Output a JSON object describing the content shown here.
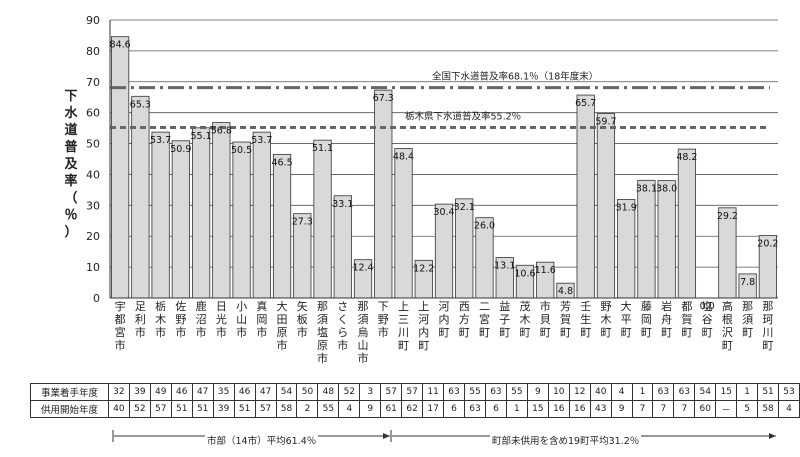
{
  "chart_data": {
    "type": "bar",
    "ylabel_chars": [
      "下",
      "水",
      "道",
      "普",
      "及",
      "率",
      "（",
      "％",
      "）"
    ],
    "ylim": [
      0,
      90
    ],
    "yticks": [
      0,
      10,
      20,
      30,
      40,
      50,
      60,
      70,
      80,
      90
    ],
    "categories": [
      {
        "name": "宇都宮市",
        "chars": [
          "宇",
          "都",
          "宮",
          "市"
        ]
      },
      {
        "name": "足利市",
        "chars": [
          "足",
          "利",
          "市"
        ]
      },
      {
        "name": "栃木市",
        "chars": [
          "栃",
          "木",
          "市"
        ]
      },
      {
        "name": "佐野市",
        "chars": [
          "佐",
          "野",
          "市"
        ]
      },
      {
        "name": "鹿沼市",
        "chars": [
          "鹿",
          "沼",
          "市"
        ]
      },
      {
        "name": "日光市",
        "chars": [
          "日",
          "光",
          "市"
        ]
      },
      {
        "name": "小山市",
        "chars": [
          "小",
          "山",
          "市"
        ]
      },
      {
        "name": "真岡市",
        "chars": [
          "真",
          "岡",
          "市"
        ]
      },
      {
        "name": "大田原市",
        "chars": [
          "大",
          "田",
          "原",
          "市"
        ]
      },
      {
        "name": "矢板市",
        "chars": [
          "矢",
          "板",
          "市"
        ]
      },
      {
        "name": "那須塩原市",
        "chars": [
          "那",
          "須",
          "塩",
          "原",
          "市"
        ]
      },
      {
        "name": "さくら市",
        "chars": [
          "さ",
          "く",
          "ら",
          "市"
        ]
      },
      {
        "name": "那須烏山市",
        "chars": [
          "那",
          "須",
          "烏",
          "山",
          "市"
        ]
      },
      {
        "name": "下野市",
        "chars": [
          "下",
          "野",
          "市"
        ]
      },
      {
        "name": "上三川町",
        "chars": [
          "上",
          "三",
          "川",
          "町"
        ]
      },
      {
        "name": "上河内町",
        "chars": [
          "上",
          "河",
          "内",
          "町"
        ]
      },
      {
        "name": "河内町",
        "chars": [
          "河",
          "内",
          "町"
        ]
      },
      {
        "name": "西方町",
        "chars": [
          "西",
          "方",
          "町"
        ]
      },
      {
        "name": "二宮町",
        "chars": [
          "二",
          "宮",
          "町"
        ]
      },
      {
        "name": "益子町",
        "chars": [
          "益",
          "子",
          "町"
        ]
      },
      {
        "name": "茂木町",
        "chars": [
          "茂",
          "木",
          "町"
        ]
      },
      {
        "name": "市貝町",
        "chars": [
          "市",
          "貝",
          "町"
        ]
      },
      {
        "name": "芳賀町",
        "chars": [
          "芳",
          "賀",
          "町"
        ]
      },
      {
        "name": "壬生町",
        "chars": [
          "壬",
          "生",
          "町"
        ]
      },
      {
        "name": "野木町",
        "chars": [
          "野",
          "木",
          "町"
        ]
      },
      {
        "name": "大平町",
        "chars": [
          "大",
          "平",
          "町"
        ]
      },
      {
        "name": "藤岡町",
        "chars": [
          "藤",
          "岡",
          "町"
        ]
      },
      {
        "name": "岩舟町",
        "chars": [
          "岩",
          "舟",
          "町"
        ]
      },
      {
        "name": "都賀町",
        "chars": [
          "都",
          "賀",
          "町"
        ]
      },
      {
        "name": "塩谷町",
        "chars": [
          "塩",
          "谷",
          "町"
        ]
      },
      {
        "name": "高根沢町",
        "chars": [
          "高",
          "根",
          "沢",
          "町"
        ]
      },
      {
        "name": "那須町",
        "chars": [
          "那",
          "須",
          "町"
        ]
      },
      {
        "name": "那珂川町",
        "chars": [
          "那",
          "珂",
          "川",
          "町"
        ]
      }
    ],
    "values": [
      84.6,
      65.3,
      53.7,
      50.9,
      55.1,
      56.8,
      50.5,
      53.7,
      46.5,
      27.3,
      51.1,
      33.1,
      12.4,
      67.3,
      48.4,
      12.2,
      30.4,
      32.1,
      26.0,
      13.1,
      10.6,
      11.6,
      4.8,
      65.7,
      59.7,
      31.9,
      38.1,
      38.0,
      48.2,
      0.0,
      29.2,
      7.8,
      20.2
    ],
    "value_labels": [
      "84.6",
      "65.3",
      "53.7",
      "50.9",
      "55.1",
      "56.8",
      "50.5",
      "53.7",
      "46.5",
      "27.3",
      "51.1",
      "33.1",
      "12.4",
      "67.3",
      "48.4",
      "12.2",
      "30.4",
      "32.1",
      "26.0",
      "13.1",
      "10.6",
      "11.6",
      "4.8",
      "65.7",
      "59.7",
      "31.9",
      "38.1",
      "38.0",
      "48.2",
      "0.0",
      "29.2",
      "7.8",
      "20.2"
    ],
    "reference_lines": [
      {
        "label": "全国下水道普及率68.1％（18年度末）",
        "value": 68.1,
        "style": "dashdot",
        "color": "#666666"
      },
      {
        "label": "栃木県下水道普及率55.2％",
        "value": 55.2,
        "style": "dashed",
        "color": "#666666"
      }
    ],
    "bar_color": "#d9d9d9",
    "grid": true
  },
  "table": {
    "rows": [
      {
        "label": "事業着手年度",
        "values": [
          "32",
          "39",
          "49",
          "46",
          "47",
          "35",
          "46",
          "47",
          "54",
          "50",
          "48",
          "52",
          "3",
          "57",
          "57",
          "11",
          "63",
          "55",
          "63",
          "55",
          "9",
          "10",
          "12",
          "40",
          "4",
          "1",
          "63",
          "63",
          "54",
          "15",
          "1",
          "51",
          "53"
        ]
      },
      {
        "label": "供用開始年度",
        "values": [
          "40",
          "52",
          "57",
          "51",
          "51",
          "39",
          "51",
          "57",
          "58",
          "2",
          "55",
          "4",
          "9",
          "61",
          "62",
          "17",
          "6",
          "63",
          "6",
          "1",
          "15",
          "16",
          "16",
          "43",
          "9",
          "7",
          "7",
          "7",
          "60",
          "－",
          "5",
          "58",
          "4"
        ]
      }
    ]
  },
  "brackets": [
    {
      "label": "市部（14市）平均61.4％"
    },
    {
      "label": "町部未供用を含め19町平均31.2％"
    }
  ]
}
